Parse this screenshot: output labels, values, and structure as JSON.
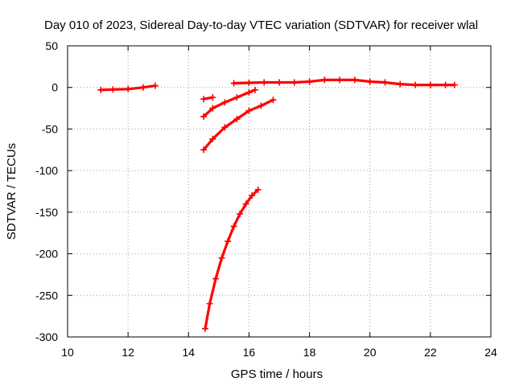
{
  "chart_data": {
    "type": "scatter",
    "title": "Day 010 of 2023, Sidereal Day-to-day VTEC variation (SDTVAR) for receiver wlal",
    "xlabel": "GPS time / hours",
    "ylabel": "SDTVAR / TECUs",
    "xlim": [
      10,
      24
    ],
    "ylim": [
      -300,
      50
    ],
    "xticks": [
      "10",
      "12",
      "14",
      "16",
      "18",
      "20",
      "22",
      "24"
    ],
    "yticks": [
      "50",
      "0",
      "-50",
      "-100",
      "-150",
      "-200",
      "-250",
      "-300"
    ],
    "grid": true,
    "marker": "plus",
    "color": "#ff0000",
    "series": [
      {
        "points": [
          [
            11.1,
            -3
          ],
          [
            11.5,
            -2.5
          ],
          [
            12.0,
            -2
          ],
          [
            12.5,
            0
          ],
          [
            12.9,
            2
          ]
        ]
      },
      {
        "points": [
          [
            15.5,
            5
          ],
          [
            16.0,
            5.5
          ],
          [
            16.5,
            6
          ],
          [
            17.0,
            6
          ],
          [
            17.5,
            6
          ],
          [
            18.0,
            7
          ],
          [
            18.5,
            9
          ],
          [
            19.0,
            9
          ],
          [
            19.5,
            9
          ],
          [
            20.0,
            7
          ],
          [
            20.5,
            6
          ],
          [
            21.0,
            4
          ],
          [
            21.5,
            3
          ],
          [
            22.0,
            3
          ],
          [
            22.5,
            3
          ],
          [
            22.8,
            3
          ]
        ]
      },
      {
        "points": [
          [
            14.5,
            -14
          ],
          [
            14.8,
            -12
          ]
        ]
      },
      {
        "points": [
          [
            14.5,
            -35
          ],
          [
            14.8,
            -25
          ],
          [
            15.2,
            -18
          ],
          [
            15.6,
            -12
          ],
          [
            16.0,
            -6
          ],
          [
            16.2,
            -3
          ]
        ]
      },
      {
        "points": [
          [
            14.5,
            -75
          ],
          [
            14.8,
            -62
          ],
          [
            15.2,
            -48
          ],
          [
            15.6,
            -38
          ],
          [
            16.0,
            -28
          ],
          [
            16.4,
            -22
          ],
          [
            16.8,
            -15
          ]
        ]
      },
      {
        "points": [
          [
            14.55,
            -290
          ],
          [
            14.7,
            -260
          ],
          [
            14.9,
            -230
          ],
          [
            15.1,
            -205
          ],
          [
            15.3,
            -185
          ],
          [
            15.5,
            -167
          ],
          [
            15.7,
            -152
          ],
          [
            15.9,
            -140
          ],
          [
            16.1,
            -130
          ],
          [
            16.3,
            -123
          ]
        ]
      }
    ]
  }
}
